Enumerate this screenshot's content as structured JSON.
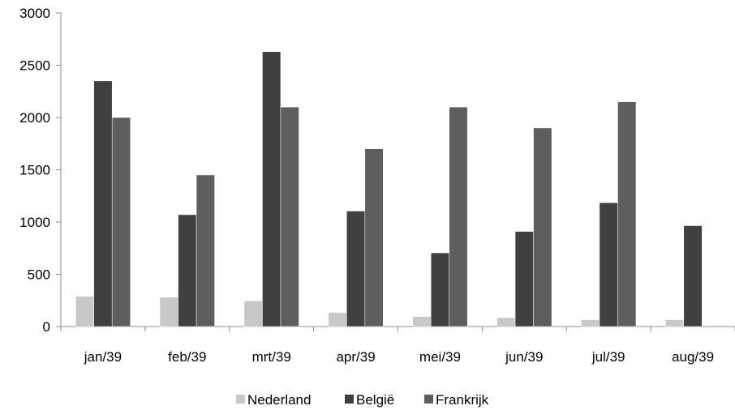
{
  "chart_data": {
    "type": "bar",
    "categories": [
      "jan/39",
      "feb/39",
      "mrt/39",
      "apr/39",
      "mei/39",
      "jun/39",
      "jul/39",
      "aug/39"
    ],
    "series": [
      {
        "name": "Nederland",
        "color": "#c8c8c8",
        "values": [
          290,
          280,
          245,
          135,
          95,
          85,
          65,
          65
        ]
      },
      {
        "name": "België",
        "color": "#404040",
        "values": [
          2350,
          1070,
          2630,
          1105,
          705,
          910,
          1185,
          965
        ]
      },
      {
        "name": "Frankrijk",
        "color": "#5e5e5e",
        "values": [
          2000,
          1450,
          2100,
          1700,
          2100,
          1900,
          2150,
          null
        ]
      }
    ],
    "yticks": [
      "0",
      "500",
      "1000",
      "1500",
      "2000",
      "2500",
      "3000"
    ],
    "ylim": [
      0,
      3000
    ],
    "grid": false,
    "legend_position": "bottom",
    "title": "",
    "xlabel": "",
    "ylabel": ""
  }
}
